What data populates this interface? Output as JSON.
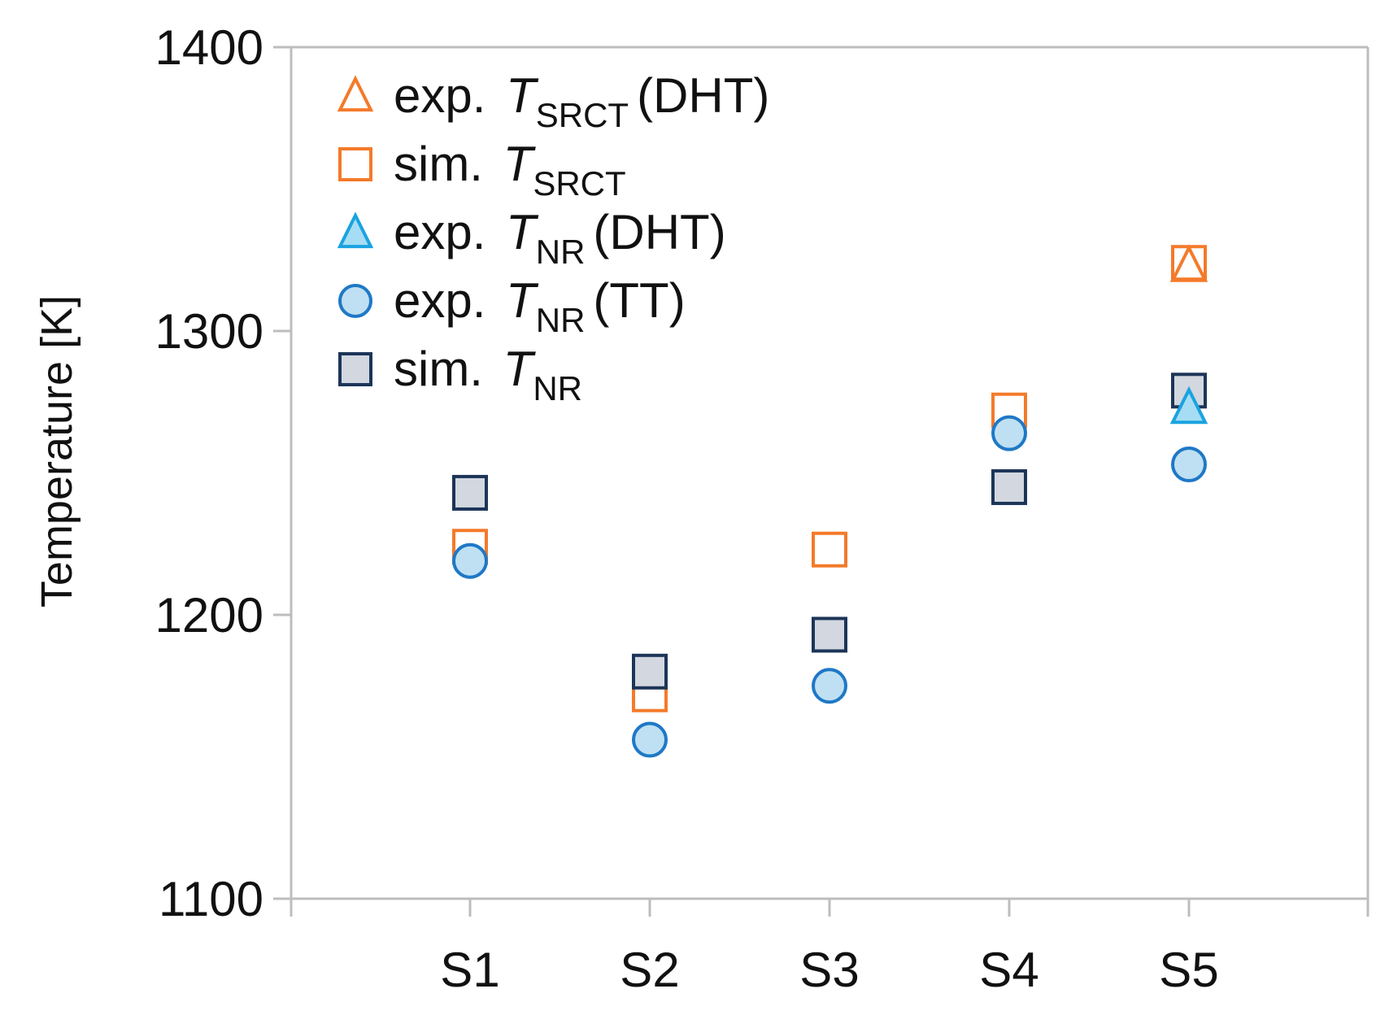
{
  "chart_data": {
    "type": "scatter",
    "title": "",
    "xlabel": "",
    "ylabel": "Temperature [K]",
    "categories": [
      "S1",
      "S2",
      "S3",
      "S4",
      "S5"
    ],
    "ylim": [
      1100,
      1400
    ],
    "yticks": [
      "1100",
      "1200",
      "1300",
      "1400"
    ],
    "grid": false,
    "legend_position": "top-left",
    "series": [
      {
        "name": "exp. T_SRCT (DHT)",
        "prefix": "exp.",
        "var": "T",
        "sub": "SRCT",
        "suffix": "(DHT)",
        "marker": "triangle",
        "stroke": "#f47a2a",
        "fill": "none",
        "values": [
          null,
          null,
          null,
          null,
          1323
        ]
      },
      {
        "name": "sim. T_SRCT",
        "prefix": "sim.",
        "var": "T",
        "sub": "SRCT",
        "suffix": "",
        "marker": "square",
        "stroke": "#f47a2a",
        "fill": "none",
        "values": [
          1224,
          1172,
          1223,
          1272,
          1324
        ]
      },
      {
        "name": "exp. T_NR (DHT)",
        "prefix": "exp.",
        "var": "T",
        "sub": "NR",
        "suffix": "(DHT)",
        "marker": "triangle",
        "stroke": "#1aa3e0",
        "fill": "#a6ddf4",
        "values": [
          null,
          null,
          null,
          null,
          1273
        ]
      },
      {
        "name": "exp. T_NR (TT)",
        "prefix": "exp.",
        "var": "T",
        "sub": "NR",
        "suffix": "(TT)",
        "marker": "circle",
        "stroke": "#1f78c6",
        "fill": "#bfe0f2",
        "values": [
          1219,
          1156,
          1175,
          1264,
          1253
        ]
      },
      {
        "name": "sim. T_NR",
        "prefix": "sim.",
        "var": "T",
        "sub": "NR",
        "suffix": "",
        "marker": "square",
        "stroke": "#1c3558",
        "fill": "#d2d7e0",
        "values": [
          1243,
          1180,
          1193,
          1245,
          1279
        ]
      }
    ]
  }
}
